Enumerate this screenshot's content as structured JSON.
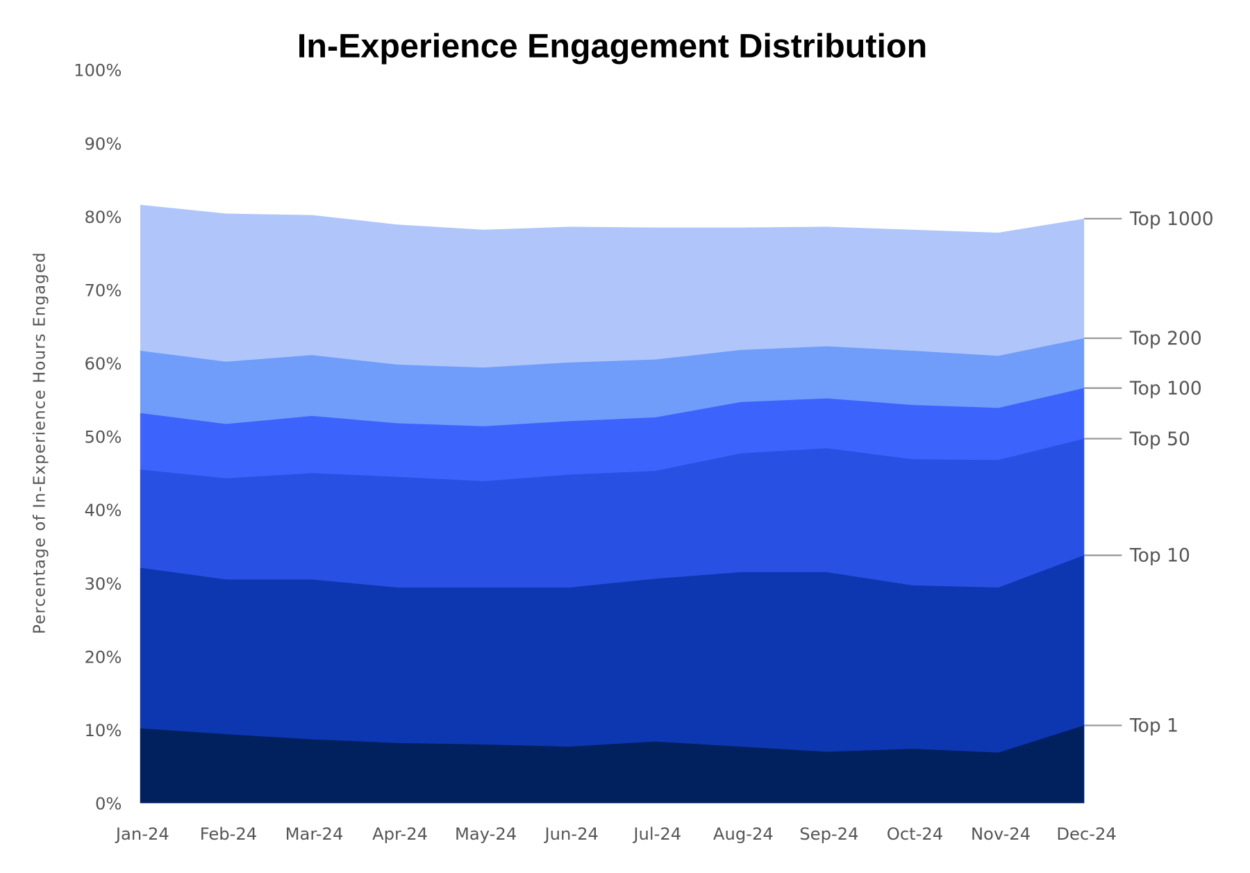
{
  "chart_data": {
    "type": "area",
    "stacked": false,
    "title": "In-Experience Engagement Distribution",
    "xlabel": "",
    "ylabel": "Percentage of In-Experience Hours Engaged",
    "ylim": [
      0,
      100
    ],
    "yticks": [
      "0%",
      "10%",
      "20%",
      "30%",
      "40%",
      "50%",
      "60%",
      "70%",
      "80%",
      "90%",
      "100%"
    ],
    "grid": false,
    "legend": "direct labels at right end of series",
    "categories": [
      "Jan-24",
      "Feb-24",
      "Mar-24",
      "Apr-24",
      "May-24",
      "Jun-24",
      "Jul-24",
      "Aug-24",
      "Sep-24",
      "Oct-24",
      "Nov-24",
      "Dec-24"
    ],
    "series": [
      {
        "name": "Top 1000",
        "color": "#B0C6FA",
        "values": [
          81.6,
          80.4,
          80.2,
          78.9,
          78.2,
          78.6,
          78.5,
          78.5,
          78.6,
          78.2,
          77.8,
          79.7
        ]
      },
      {
        "name": "Top 200",
        "color": "#709DFA",
        "values": [
          61.7,
          60.2,
          61.1,
          59.8,
          59.4,
          60.1,
          60.5,
          61.8,
          62.3,
          61.7,
          61.0,
          63.4
        ]
      },
      {
        "name": "Top 100",
        "color": "#3D63FD",
        "values": [
          53.2,
          51.7,
          52.8,
          51.8,
          51.4,
          52.1,
          52.6,
          54.7,
          55.2,
          54.3,
          53.9,
          56.6
        ]
      },
      {
        "name": "Top 50",
        "color": "#2850E3",
        "values": [
          45.5,
          44.3,
          45.0,
          44.5,
          43.9,
          44.8,
          45.3,
          47.7,
          48.4,
          46.9,
          46.8,
          49.7
        ]
      },
      {
        "name": "Top 10",
        "color": "#0D36B1",
        "values": [
          32.1,
          30.5,
          30.5,
          29.4,
          29.4,
          29.4,
          30.6,
          31.5,
          31.5,
          29.7,
          29.4,
          33.8
        ]
      },
      {
        "name": "Top 1",
        "color": "#00205E",
        "values": [
          10.2,
          9.4,
          8.7,
          8.2,
          8.0,
          7.7,
          8.4,
          7.7,
          7.0,
          7.4,
          6.9,
          10.6
        ]
      }
    ]
  }
}
